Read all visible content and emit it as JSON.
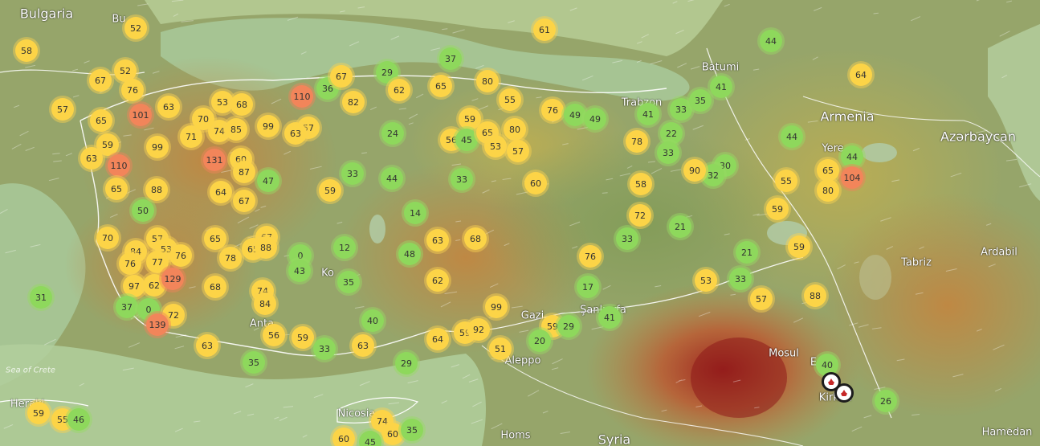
{
  "map": {
    "labels": {
      "countries": [
        {
          "text": "Bulgaria"
        },
        {
          "text": "Armenia"
        },
        {
          "text": "Azərbaycan"
        },
        {
          "text": "Syria"
        }
      ],
      "cities": [
        {
          "text": "Bu"
        },
        {
          "text": "Batumi"
        },
        {
          "text": "Trabzon"
        },
        {
          "text": "Yere"
        },
        {
          "text": "Tabriz"
        },
        {
          "text": "Ardabil"
        },
        {
          "text": "Ko"
        },
        {
          "text": "Anta"
        },
        {
          "text": "Gazi"
        },
        {
          "text": "Şanlıurfa"
        },
        {
          "text": "Mosul"
        },
        {
          "text": "E"
        },
        {
          "text": "Kirkuk"
        },
        {
          "text": "Aleppo"
        },
        {
          "text": "Homs"
        },
        {
          "text": "Hamedan"
        },
        {
          "text": "Herakl"
        },
        {
          "text": "Nicosia"
        }
      ],
      "seas": [
        {
          "text": "Sea of Crete"
        }
      ]
    },
    "markers": [
      {
        "v": "58"
      },
      {
        "v": "52"
      },
      {
        "v": "61"
      },
      {
        "v": "44"
      },
      {
        "v": "64"
      },
      {
        "v": "67"
      },
      {
        "v": "52"
      },
      {
        "v": "76"
      },
      {
        "v": "57"
      },
      {
        "v": "65"
      },
      {
        "v": "101"
      },
      {
        "v": "63"
      },
      {
        "v": "110"
      },
      {
        "v": "36"
      },
      {
        "v": "67"
      },
      {
        "v": "82"
      },
      {
        "v": "29"
      },
      {
        "v": "62"
      },
      {
        "v": "37"
      },
      {
        "v": "65"
      },
      {
        "v": "80"
      },
      {
        "v": "55"
      },
      {
        "v": "76"
      },
      {
        "v": "49"
      },
      {
        "v": "49"
      },
      {
        "v": "41"
      },
      {
        "v": "33"
      },
      {
        "v": "35"
      },
      {
        "v": "41"
      },
      {
        "v": "53"
      },
      {
        "v": "68"
      },
      {
        "v": "99"
      },
      {
        "v": "57"
      },
      {
        "v": "63"
      },
      {
        "v": "74"
      },
      {
        "v": "85"
      },
      {
        "v": "71"
      },
      {
        "v": "99"
      },
      {
        "v": "59"
      },
      {
        "v": "63"
      },
      {
        "v": "110"
      },
      {
        "v": "131"
      },
      {
        "v": "60"
      },
      {
        "v": "87"
      },
      {
        "v": "24"
      },
      {
        "v": "59"
      },
      {
        "v": "56"
      },
      {
        "v": "45"
      },
      {
        "v": "65"
      },
      {
        "v": "80"
      },
      {
        "v": "53"
      },
      {
        "v": "57"
      },
      {
        "v": "78"
      },
      {
        "v": "22"
      },
      {
        "v": "33"
      },
      {
        "v": "44"
      },
      {
        "v": "44"
      },
      {
        "v": "65"
      },
      {
        "v": "104"
      },
      {
        "v": "80"
      },
      {
        "v": "55"
      },
      {
        "v": "30"
      },
      {
        "v": "32"
      },
      {
        "v": "65"
      },
      {
        "v": "88"
      },
      {
        "v": "64"
      },
      {
        "v": "67"
      },
      {
        "v": "47"
      },
      {
        "v": "33"
      },
      {
        "v": "44"
      },
      {
        "v": "33"
      },
      {
        "v": "60"
      },
      {
        "v": "58"
      },
      {
        "v": "59"
      },
      {
        "v": "50"
      },
      {
        "v": "14"
      },
      {
        "v": "72"
      },
      {
        "v": "21"
      },
      {
        "v": "59"
      },
      {
        "v": "70"
      },
      {
        "v": "57"
      },
      {
        "v": "65"
      },
      {
        "v": "67"
      },
      {
        "v": "63"
      },
      {
        "v": "68"
      },
      {
        "v": "84"
      },
      {
        "v": "53"
      },
      {
        "v": "76"
      },
      {
        "v": "77"
      },
      {
        "v": "76"
      },
      {
        "v": "78"
      },
      {
        "v": "65"
      },
      {
        "v": "0"
      },
      {
        "v": "12"
      },
      {
        "v": "48"
      },
      {
        "v": "43"
      },
      {
        "v": "35"
      },
      {
        "v": "62"
      },
      {
        "v": "33"
      },
      {
        "v": "76"
      },
      {
        "v": "21"
      },
      {
        "v": "59"
      },
      {
        "v": "97"
      },
      {
        "v": "62"
      },
      {
        "v": "129"
      },
      {
        "v": "68"
      },
      {
        "v": "74"
      },
      {
        "v": "84"
      },
      {
        "v": "17"
      },
      {
        "v": "53"
      },
      {
        "v": "33"
      },
      {
        "v": "57"
      },
      {
        "v": "88"
      },
      {
        "v": "31"
      },
      {
        "v": "37"
      },
      {
        "v": "0"
      },
      {
        "v": "72"
      },
      {
        "v": "139"
      },
      {
        "v": "99"
      },
      {
        "v": "41"
      },
      {
        "v": "40"
      },
      {
        "v": "56"
      },
      {
        "v": "59"
      },
      {
        "v": "33"
      },
      {
        "v": "63"
      },
      {
        "v": "64"
      },
      {
        "v": "59"
      },
      {
        "v": "92"
      },
      {
        "v": "59"
      },
      {
        "v": "29"
      },
      {
        "v": "20"
      },
      {
        "v": "51"
      },
      {
        "v": "63"
      },
      {
        "v": "35"
      },
      {
        "v": "29"
      },
      {
        "v": "26"
      },
      {
        "v": "59"
      },
      {
        "v": "55"
      },
      {
        "v": "46"
      },
      {
        "v": "74"
      },
      {
        "v": "60"
      },
      {
        "v": "35"
      },
      {
        "v": "60"
      },
      {
        "v": "45"
      },
      {
        "v": "40"
      },
      {
        "v": "70"
      },
      {
        "v": "88"
      },
      {
        "v": "90"
      }
    ],
    "fires": 2,
    "colors": {
      "good": "#8ed85c",
      "moderate": "#fcd447",
      "unhealthy_sensitive": "#f2855a",
      "sea": "#a6c9a0",
      "land": "#8fa36a",
      "hotspot": "#a82020"
    }
  }
}
